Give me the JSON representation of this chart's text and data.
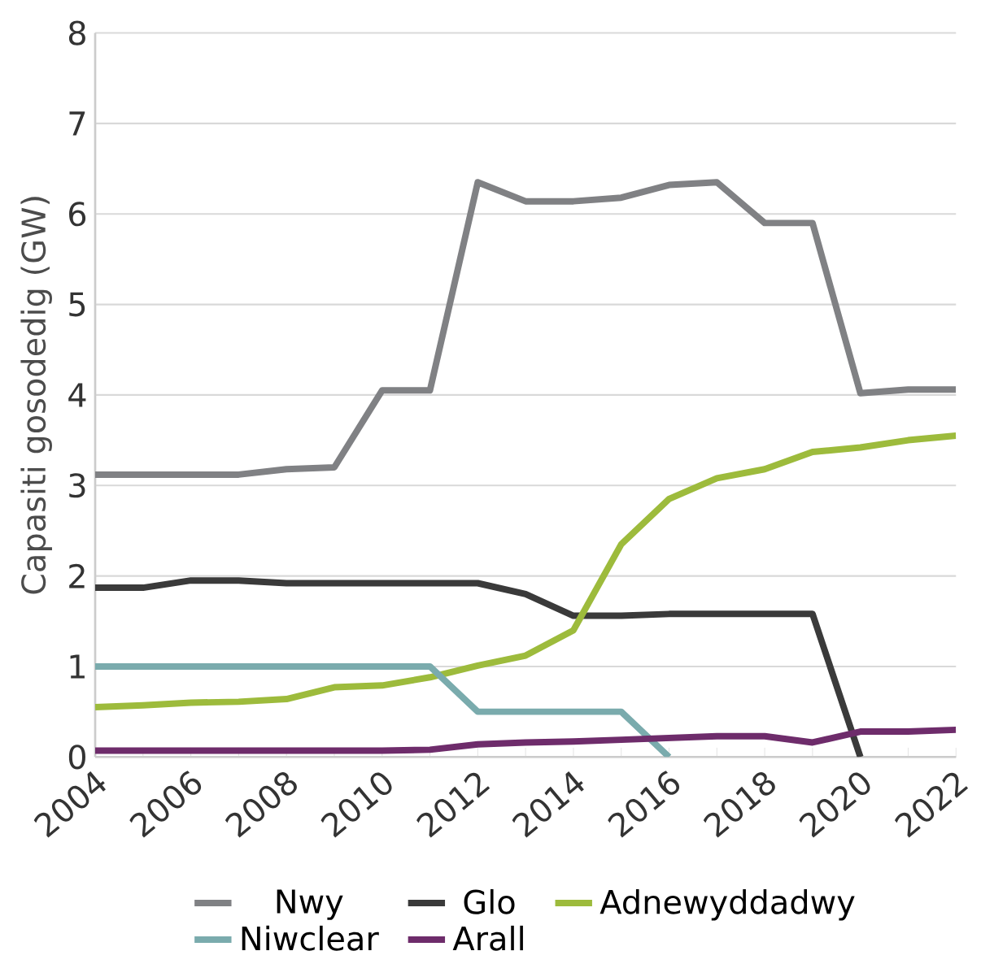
{
  "chart_data": {
    "type": "line",
    "ylabel": "Capasiti gosodedig (GW)",
    "x": [
      2004,
      2005,
      2006,
      2007,
      2008,
      2009,
      2010,
      2011,
      2012,
      2013,
      2014,
      2015,
      2016,
      2017,
      2018,
      2019,
      2020,
      2021,
      2022
    ],
    "xlim": [
      2004,
      2022
    ],
    "xticks": [
      2004,
      {
        "value": 2005,
        "label": null
      },
      2006,
      {
        "value": 2007,
        "label": null
      },
      2008,
      {
        "value": 2009,
        "label": null
      },
      2010,
      {
        "value": 2011,
        "label": null
      },
      2012,
      {
        "value": 2013,
        "label": null
      },
      2014,
      {
        "value": 2015,
        "label": null
      },
      2016,
      {
        "value": 2017,
        "label": null
      },
      2018,
      {
        "value": 2019,
        "label": null
      },
      2020,
      {
        "value": 2021,
        "label": null
      },
      2022
    ],
    "ylim": [
      0,
      8
    ],
    "yticks": [
      0,
      1,
      2,
      3,
      4,
      5,
      6,
      7,
      8
    ],
    "grid": "y",
    "legend": "bottom",
    "marker": "none",
    "line_style": "solid",
    "series": [
      {
        "name": "Nwy",
        "color": "#808184",
        "values": [
          3.12,
          3.12,
          3.12,
          3.12,
          3.18,
          3.2,
          4.05,
          4.05,
          6.35,
          6.14,
          6.14,
          6.18,
          6.32,
          6.35,
          5.9,
          5.9,
          4.02,
          4.06,
          4.06
        ]
      },
      {
        "name": "Glo",
        "color": "#3a3a3a",
        "values": [
          1.87,
          1.87,
          1.95,
          1.95,
          1.92,
          1.92,
          1.92,
          1.92,
          1.92,
          1.8,
          1.56,
          1.56,
          1.58,
          1.58,
          1.58,
          1.58,
          0,
          null,
          null
        ]
      },
      {
        "name": "Adnewyddadwy",
        "color": "#9dbb3c",
        "values": [
          0.55,
          0.57,
          0.6,
          0.61,
          0.64,
          0.77,
          0.79,
          0.88,
          1.01,
          1.12,
          1.4,
          2.35,
          2.85,
          3.08,
          3.18,
          3.37,
          3.42,
          3.5,
          3.55
        ]
      },
      {
        "name": "Niwclear",
        "color": "#7aabad",
        "values": [
          1,
          1,
          1,
          1,
          1,
          1,
          1,
          1,
          0.5,
          0.5,
          0.5,
          0.5,
          0,
          null,
          null,
          null,
          null,
          null,
          null
        ]
      },
      {
        "name": "Arall",
        "color": "#6e2c6b",
        "values": [
          0.07,
          0.07,
          0.07,
          0.07,
          0.07,
          0.07,
          0.07,
          0.08,
          0.14,
          0.16,
          0.17,
          0.19,
          0.21,
          0.23,
          0.23,
          0.16,
          0.28,
          0.28,
          0.3
        ]
      }
    ]
  }
}
